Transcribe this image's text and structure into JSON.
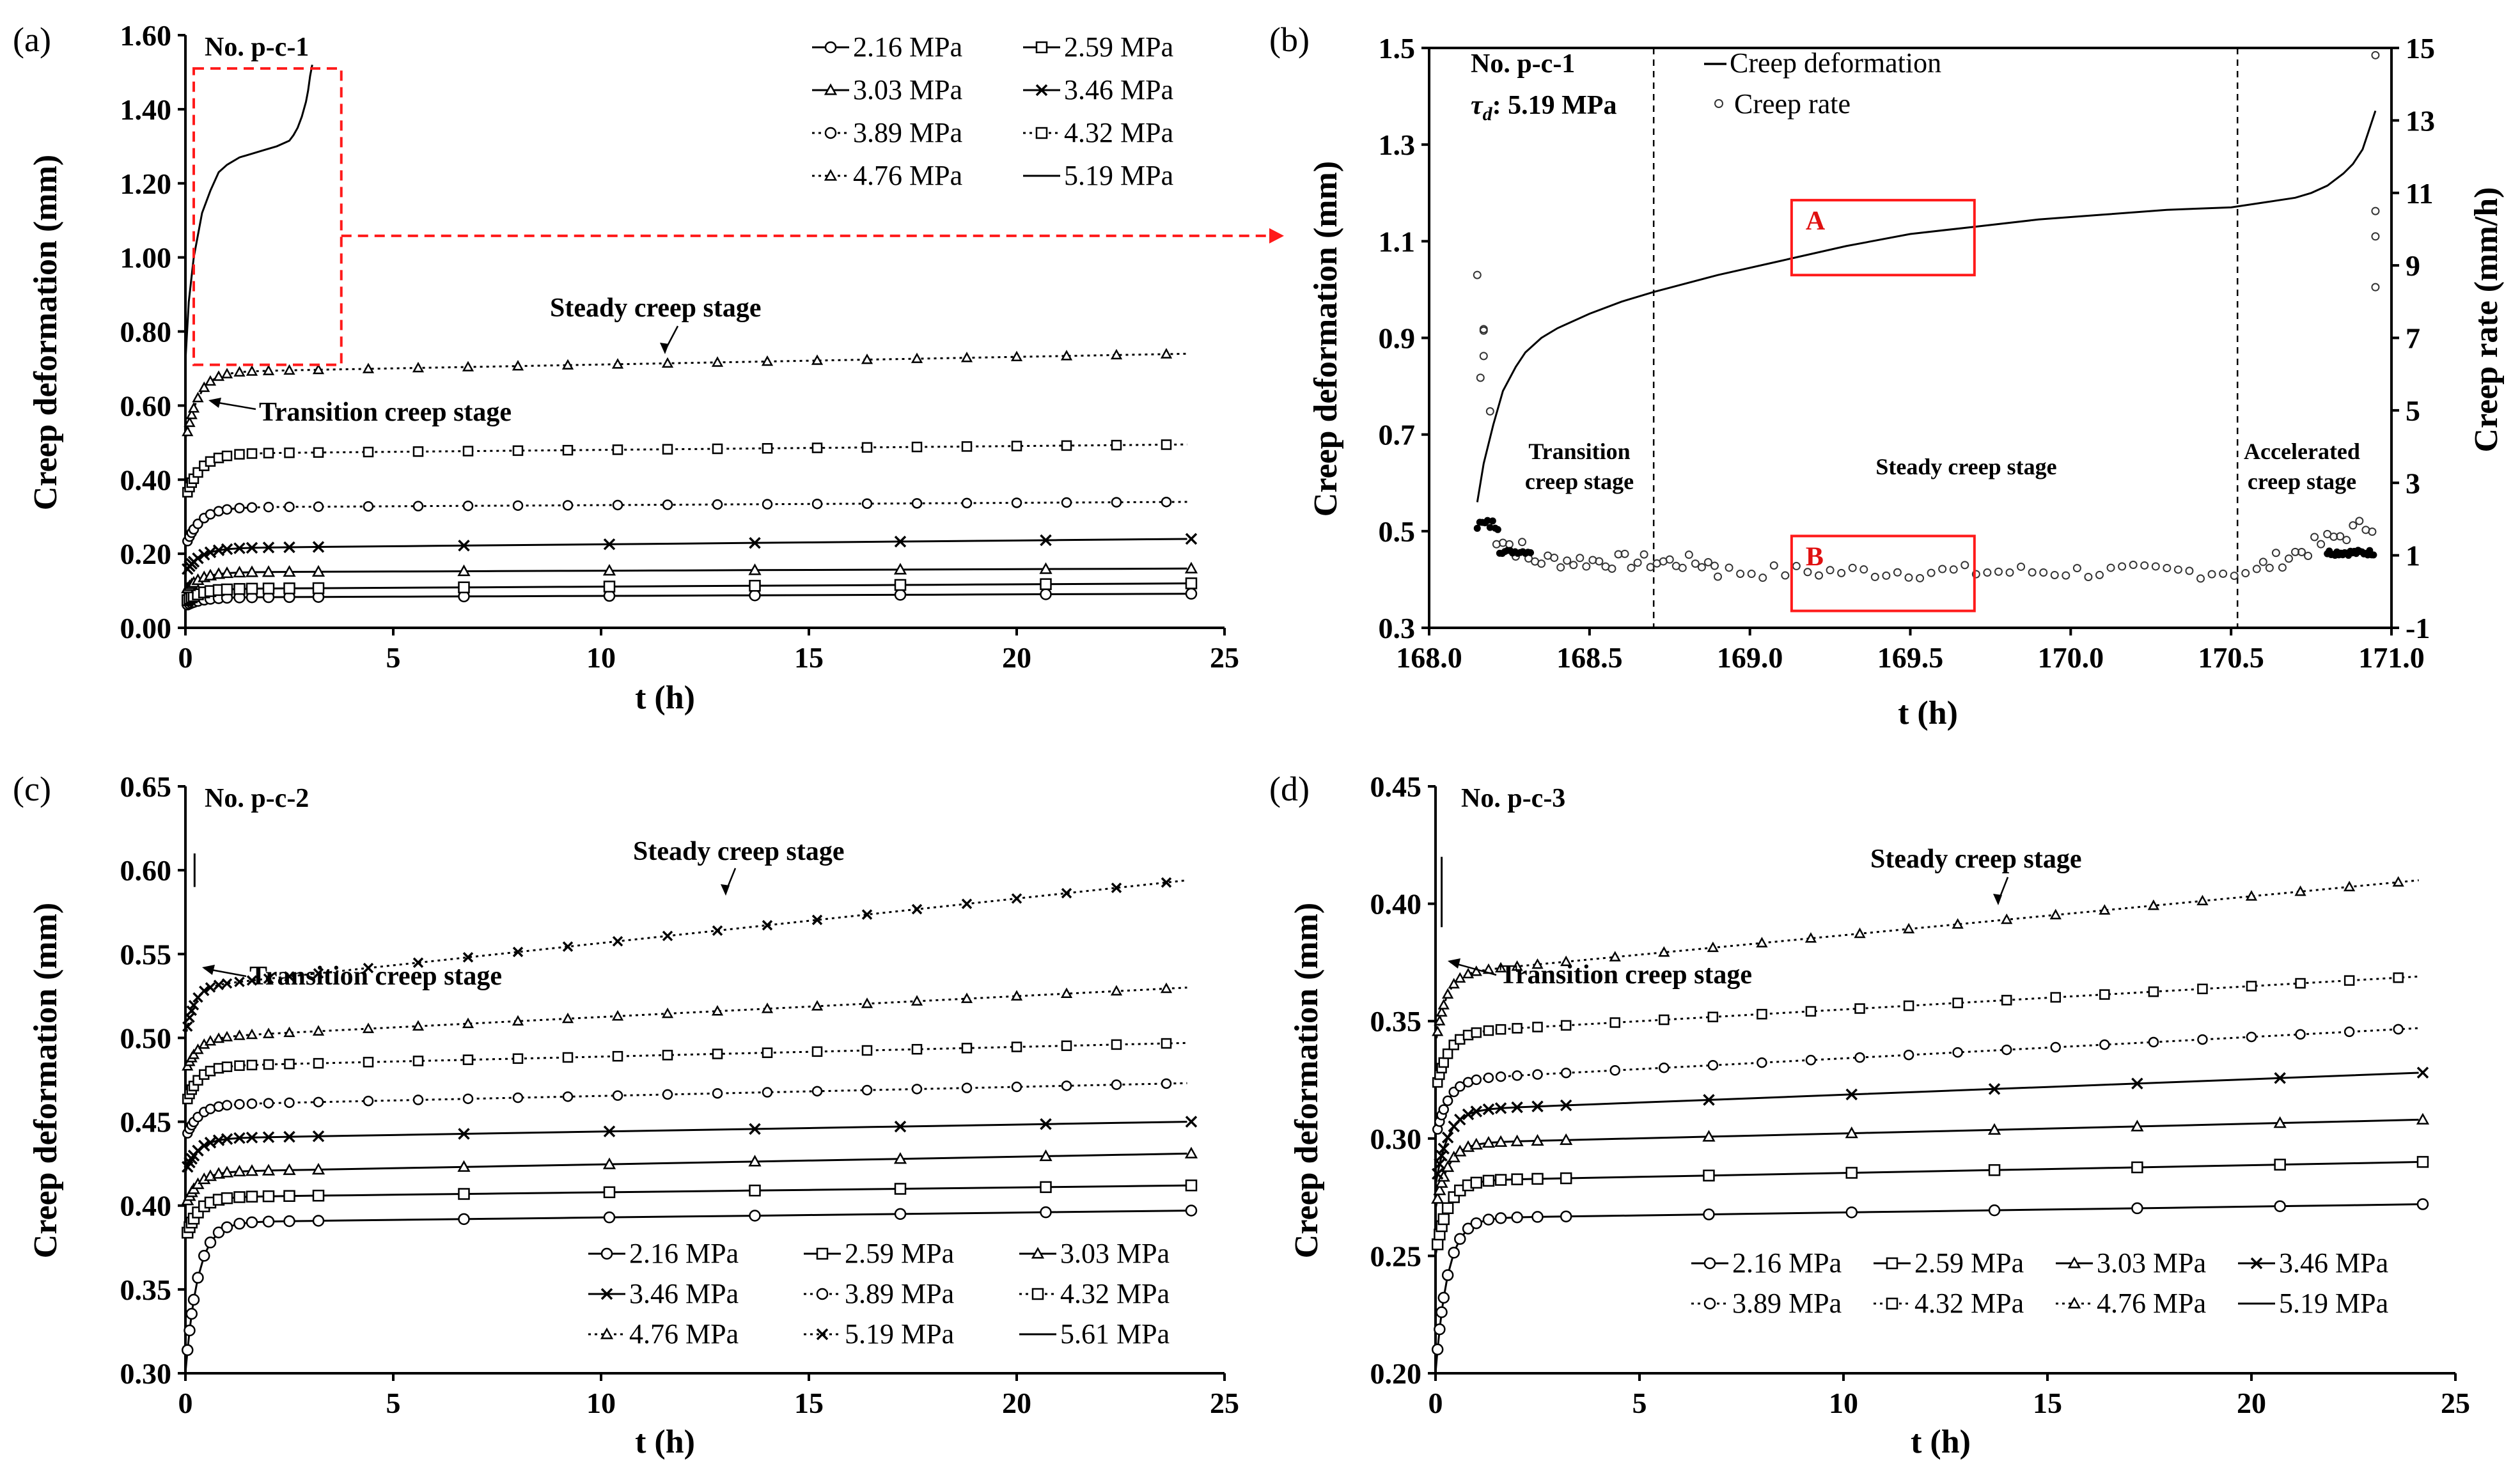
{
  "chart_data": [
    {
      "id": "a",
      "panel_label": "(a)",
      "type": "line",
      "specimen": "No. p-c-1",
      "xlabel": "t (h)",
      "ylabel": "Creep deformation (mm)",
      "xlim": [
        0,
        25
      ],
      "ylim": [
        0,
        1.6
      ],
      "xticks": [
        0,
        5,
        10,
        15,
        20,
        25
      ],
      "yticks": [
        0.0,
        0.2,
        0.4,
        0.6,
        0.8,
        1.0,
        1.2,
        1.4,
        1.6
      ],
      "ytick_decimals": 2,
      "legend_position": "top-right",
      "legend_columns": 2,
      "annotations": {
        "steady": "Steady creep stage",
        "transition": "Transition creep stage"
      },
      "series": [
        {
          "name": "2.16 MPa",
          "marker": "circle",
          "dotted": false,
          "start": 0.06,
          "plateau": 0.082,
          "end": 0.092,
          "tau": 0.35
        },
        {
          "name": "2.59 MPa",
          "marker": "square",
          "dotted": false,
          "start": 0.07,
          "plateau": 0.105,
          "end": 0.12,
          "tau": 0.35
        },
        {
          "name": "3.03 MPa",
          "marker": "triangle",
          "dotted": false,
          "start": 0.1,
          "plateau": 0.15,
          "end": 0.16,
          "tau": 0.35
        },
        {
          "name": "3.46 MPa",
          "marker": "x",
          "dotted": false,
          "start": 0.15,
          "plateau": 0.215,
          "end": 0.24,
          "tau": 0.35
        },
        {
          "name": "3.89 MPa",
          "marker": "circle",
          "dotted": true,
          "start": 0.22,
          "plateau": 0.325,
          "end": 0.34,
          "tau": 0.35
        },
        {
          "name": "4.32 MPa",
          "marker": "square",
          "dotted": true,
          "start": 0.35,
          "plateau": 0.47,
          "end": 0.495,
          "tau": 0.35
        },
        {
          "name": "4.76 MPa",
          "marker": "triangle",
          "dotted": true,
          "start": 0.5,
          "plateau": 0.69,
          "end": 0.74,
          "tau": 0.3
        },
        {
          "name": "5.19 MPa",
          "marker": "none",
          "dotted": false,
          "x": [
            0,
            0.08,
            0.2,
            0.4,
            0.6,
            0.8,
            1.0,
            1.3,
            1.6,
            1.9,
            2.2,
            2.4,
            2.5,
            2.6,
            2.7,
            2.8,
            2.9,
            2.95,
            3.0,
            3.05
          ],
          "y": [
            0.72,
            0.88,
            1.0,
            1.12,
            1.18,
            1.23,
            1.25,
            1.27,
            1.28,
            1.29,
            1.3,
            1.31,
            1.315,
            1.33,
            1.35,
            1.38,
            1.42,
            1.45,
            1.49,
            1.52
          ]
        }
      ],
      "zoom_box": {
        "x0": 0.2,
        "x1": 3.75,
        "y0": 0.71,
        "y1": 1.51
      }
    },
    {
      "id": "b",
      "panel_label": "(b)",
      "type": "line",
      "specimen": "No. p-c-1",
      "stress_label": "τd",
      "stress_value": ": 5.19 MPa",
      "xlabel": "t (h)",
      "ylabel": "Creep deformation (mm)",
      "y2label": "Creep rate (mm/h)",
      "xlim": [
        168.0,
        171.0
      ],
      "ylim": [
        0.3,
        1.5
      ],
      "y2lim": [
        -1,
        15
      ],
      "xticks": [
        168.0,
        168.5,
        169.0,
        169.5,
        170.0,
        170.5,
        171.0
      ],
      "yticks": [
        0.3,
        0.5,
        0.7,
        0.9,
        1.1,
        1.3,
        1.5
      ],
      "y2ticks": [
        -1,
        1,
        3,
        5,
        7,
        9,
        11,
        13,
        15
      ],
      "legend": [
        "Creep deformation",
        "Creep rate"
      ],
      "stage_boundaries": [
        168.7,
        170.52
      ],
      "stages": [
        "Transition creep stage",
        "Steady creep stage",
        "Accelerated creep stage"
      ],
      "boxes": [
        {
          "label": "A",
          "x0": 169.13,
          "x1": 169.7,
          "y0": 1.03,
          "y1": 1.185
        },
        {
          "label": "B",
          "x0": 169.13,
          "x1": 169.7,
          "y0": 0.335,
          "y1": 0.49
        }
      ],
      "deformation": {
        "x": [
          168.15,
          168.17,
          168.2,
          168.23,
          168.27,
          168.3,
          168.35,
          168.4,
          168.5,
          168.6,
          168.7,
          168.9,
          169.1,
          169.3,
          169.5,
          169.7,
          169.9,
          170.1,
          170.3,
          170.5,
          170.6,
          170.7,
          170.75,
          170.8,
          170.85,
          170.88,
          170.91,
          170.93,
          170.95
        ],
        "y": [
          0.56,
          0.64,
          0.72,
          0.79,
          0.84,
          0.87,
          0.9,
          0.92,
          0.95,
          0.975,
          0.995,
          1.03,
          1.06,
          1.09,
          1.115,
          1.13,
          1.145,
          1.155,
          1.165,
          1.17,
          1.18,
          1.19,
          1.2,
          1.215,
          1.24,
          1.26,
          1.29,
          1.33,
          1.37
        ]
      }
    },
    {
      "id": "c",
      "panel_label": "(c)",
      "type": "line",
      "specimen": "No. p-c-2",
      "xlabel": "t (h)",
      "ylabel": "Creep deformation (mm)",
      "xlim": [
        0,
        25
      ],
      "ylim": [
        0.3,
        0.65
      ],
      "xticks": [
        0,
        5,
        10,
        15,
        20,
        25
      ],
      "yticks": [
        0.3,
        0.35,
        0.4,
        0.45,
        0.5,
        0.55,
        0.6,
        0.65
      ],
      "ytick_decimals": 2,
      "legend_position": "bottom-right",
      "legend_columns": 3,
      "annotations": {
        "steady": "Steady creep stage",
        "transition": "Transition creep stage"
      },
      "series": [
        {
          "name": "2.16 MPa",
          "marker": "circle",
          "dotted": false,
          "start": 0.3,
          "plateau": 0.39,
          "end": 0.397,
          "tau": 0.3
        },
        {
          "name": "2.59 MPa",
          "marker": "square",
          "dotted": false,
          "start": 0.38,
          "plateau": 0.405,
          "end": 0.412,
          "tau": 0.3
        },
        {
          "name": "3.03 MPa",
          "marker": "triangle",
          "dotted": false,
          "start": 0.4,
          "plateau": 0.42,
          "end": 0.431,
          "tau": 0.3
        },
        {
          "name": "3.46 MPa",
          "marker": "x",
          "dotted": false,
          "start": 0.42,
          "plateau": 0.44,
          "end": 0.45,
          "tau": 0.3
        },
        {
          "name": "3.89 MPa",
          "marker": "circle",
          "dotted": true,
          "start": 0.44,
          "plateau": 0.46,
          "end": 0.473,
          "tau": 0.3
        },
        {
          "name": "4.32 MPa",
          "marker": "square",
          "dotted": true,
          "start": 0.46,
          "plateau": 0.483,
          "end": 0.497,
          "tau": 0.3
        },
        {
          "name": "4.76 MPa",
          "marker": "triangle",
          "dotted": true,
          "start": 0.48,
          "plateau": 0.5,
          "end": 0.53,
          "tau": 0.3
        },
        {
          "name": "5.19 MPa",
          "marker": "x",
          "dotted": true,
          "start": 0.5,
          "plateau": 0.53,
          "end": 0.594,
          "tau": 0.2
        },
        {
          "name": "5.61 MPa",
          "marker": "none",
          "dotted": false,
          "x": [
            0.22,
            0.22
          ],
          "y": [
            0.59,
            0.61
          ]
        }
      ]
    },
    {
      "id": "d",
      "panel_label": "(d)",
      "type": "line",
      "specimen": "No. p-c-3",
      "xlabel": "t (h)",
      "ylabel": "Creep deformation (mm)",
      "xlim": [
        0,
        25
      ],
      "ylim": [
        0.2,
        0.45
      ],
      "xticks": [
        0,
        5,
        10,
        15,
        20,
        25
      ],
      "yticks": [
        0.2,
        0.25,
        0.3,
        0.35,
        0.4,
        0.45
      ],
      "ytick_decimals": 2,
      "legend_position": "bottom-right",
      "legend_columns": 4,
      "annotations": {
        "steady": "Steady creep stage",
        "transition": "Transition creep stage"
      },
      "series": [
        {
          "name": "2.16 MPa",
          "marker": "circle",
          "dotted": false,
          "start": 0.2,
          "plateau": 0.266,
          "end": 0.272,
          "tau": 0.3
        },
        {
          "name": "2.59 MPa",
          "marker": "square",
          "dotted": false,
          "start": 0.25,
          "plateau": 0.282,
          "end": 0.29,
          "tau": 0.3
        },
        {
          "name": "3.03 MPa",
          "marker": "triangle",
          "dotted": false,
          "start": 0.27,
          "plateau": 0.298,
          "end": 0.308,
          "tau": 0.3
        },
        {
          "name": "3.46 MPa",
          "marker": "x",
          "dotted": false,
          "start": 0.28,
          "plateau": 0.312,
          "end": 0.328,
          "tau": 0.3
        },
        {
          "name": "3.89 MPa",
          "marker": "circle",
          "dotted": true,
          "start": 0.3,
          "plateau": 0.325,
          "end": 0.347,
          "tau": 0.3
        },
        {
          "name": "4.32 MPa",
          "marker": "square",
          "dotted": true,
          "start": 0.32,
          "plateau": 0.345,
          "end": 0.369,
          "tau": 0.3
        },
        {
          "name": "4.76 MPa",
          "marker": "triangle",
          "dotted": true,
          "start": 0.34,
          "plateau": 0.37,
          "end": 0.41,
          "tau": 0.25
        },
        {
          "name": "5.19 MPa",
          "marker": "none",
          "dotted": false,
          "x": [
            0.15,
            0.15
          ],
          "y": [
            0.39,
            0.42
          ]
        }
      ]
    }
  ]
}
